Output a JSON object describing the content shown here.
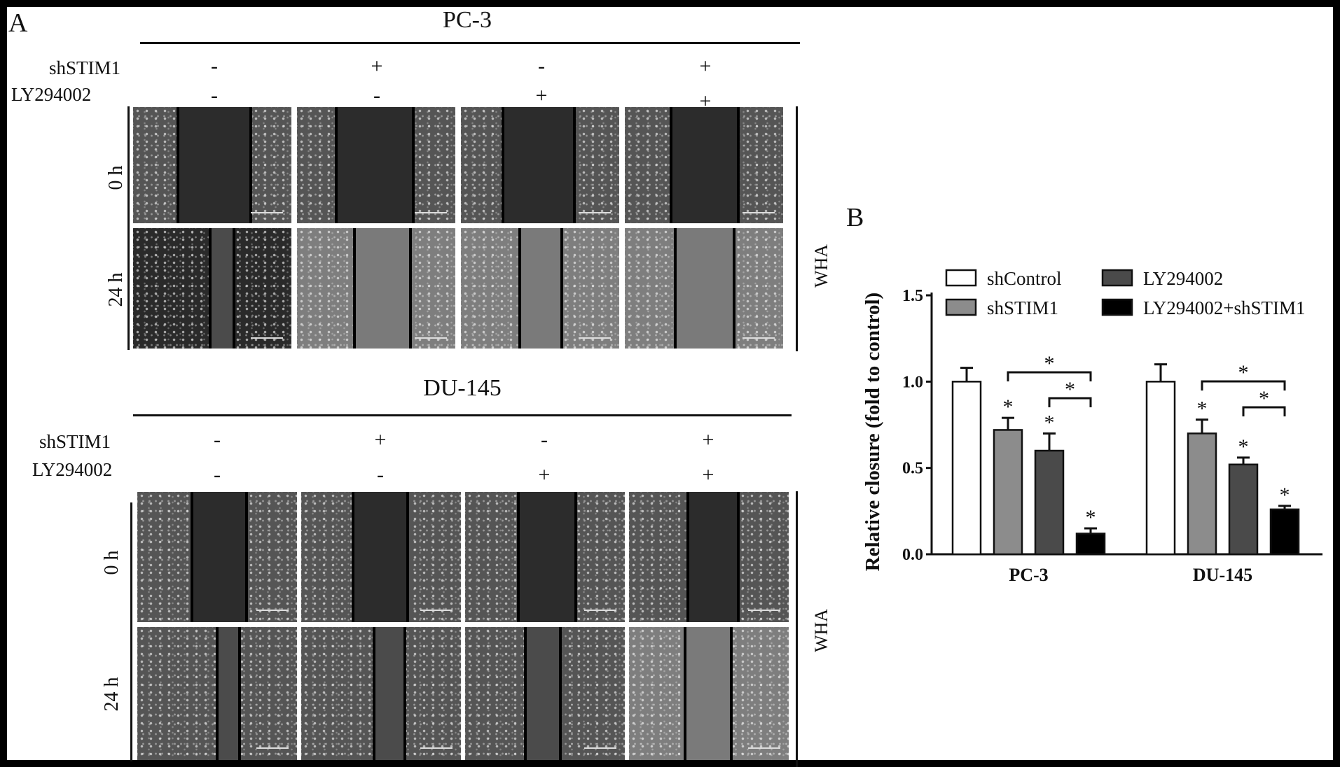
{
  "panel_a": {
    "label": "A",
    "row_labels": {
      "shstim1": "shSTIM1",
      "ly": "LY294002"
    },
    "blocks": [
      {
        "cell_line": "PC-3",
        "shstim1": [
          "-",
          "+",
          "-",
          "+"
        ],
        "ly294002": [
          "-",
          "-",
          "+",
          "+"
        ],
        "time_0": "0 h",
        "time_24": "24 h",
        "side_label": "WHA"
      },
      {
        "cell_line": "DU-145",
        "shstim1": [
          "-",
          "+",
          "-",
          "+"
        ],
        "ly294002": [
          "-",
          "-",
          "+",
          "+"
        ],
        "time_0": "0 h",
        "time_24": "24 h",
        "side_label": "WHA"
      }
    ]
  },
  "panel_b": {
    "label": "B"
  },
  "chart_data": {
    "type": "bar",
    "ylabel": "Relative closure (fold to control)",
    "xlabel": "",
    "ylim": [
      0.0,
      1.5
    ],
    "yticks": [
      "0.0",
      "0.5",
      "1.0",
      "1.5"
    ],
    "categories": [
      "PC-3",
      "DU-145"
    ],
    "legend_position": "top",
    "series": [
      {
        "name": "shControl",
        "color": "#ffffff",
        "values": [
          1.0,
          1.0
        ],
        "errors": [
          0.08,
          0.1
        ],
        "stars": [
          "",
          ""
        ]
      },
      {
        "name": "shSTIM1",
        "color": "#8c8c8c",
        "values": [
          0.72,
          0.7
        ],
        "errors": [
          0.07,
          0.08
        ],
        "stars": [
          "*",
          "*"
        ]
      },
      {
        "name": "LY294002",
        "color": "#4a4a4a",
        "values": [
          0.6,
          0.52
        ],
        "errors": [
          0.1,
          0.04
        ],
        "stars": [
          "*",
          "*"
        ]
      },
      {
        "name": "LY294002+shSTIM1",
        "color": "#000000",
        "values": [
          0.12,
          0.26
        ],
        "errors": [
          0.03,
          0.02
        ],
        "stars": [
          "*",
          "*"
        ]
      }
    ],
    "comparisons": [
      {
        "category": 0,
        "from": 1,
        "to": 3,
        "label": "*"
      },
      {
        "category": 0,
        "from": 2,
        "to": 3,
        "label": "*"
      },
      {
        "category": 1,
        "from": 1,
        "to": 3,
        "label": "*"
      },
      {
        "category": 1,
        "from": 2,
        "to": 3,
        "label": "*"
      }
    ]
  }
}
